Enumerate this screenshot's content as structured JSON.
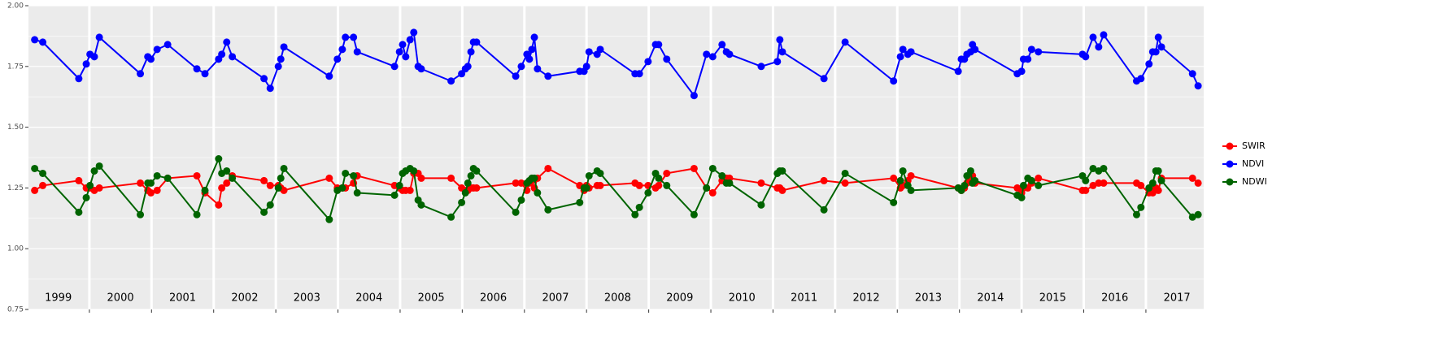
{
  "chart_data": {
    "type": "line",
    "x": [
      1999.12,
      1999.25,
      1999.83,
      1999.95,
      2000.01,
      2000.08,
      2000.16,
      2000.82,
      2000.94,
      2000.99,
      2001.09,
      2001.26,
      2001.73,
      2001.86,
      2002.08,
      2002.13,
      2002.21,
      2002.3,
      2002.81,
      2002.91,
      2003.04,
      2003.08,
      2003.13,
      2003.86,
      2003.99,
      2004.07,
      2004.12,
      2004.25,
      2004.31,
      2004.91,
      2004.99,
      2005.04,
      2005.09,
      2005.16,
      2005.22,
      2005.29,
      2005.34,
      2005.82,
      2005.99,
      2006.05,
      2006.09,
      2006.14,
      2006.18,
      2006.23,
      2006.86,
      2006.95,
      2007.04,
      2007.08,
      2007.12,
      2007.16,
      2007.21,
      2007.38,
      2007.89,
      2007.96,
      2008.0,
      2008.04,
      2008.17,
      2008.22,
      2008.78,
      2008.85,
      2008.99,
      2009.11,
      2009.16,
      2009.29,
      2009.73,
      2009.93,
      2010.03,
      2010.18,
      2010.25,
      2010.3,
      2010.81,
      2011.07,
      2011.11,
      2011.15,
      2011.82,
      2012.16,
      2012.94,
      2013.05,
      2013.09,
      2013.17,
      2013.22,
      2013.98,
      2014.03,
      2014.08,
      2014.12,
      2014.18,
      2014.21,
      2014.25,
      2014.93,
      2015.0,
      2015.03,
      2015.1,
      2015.16,
      2015.27,
      2015.98,
      2016.03,
      2016.15,
      2016.24,
      2016.32,
      2016.85,
      2016.92,
      2017.05,
      2017.11,
      2017.16,
      2017.2,
      2017.25,
      2017.75,
      2017.84
    ],
    "series": [
      {
        "name": "SWIR",
        "color": "#ff0000",
        "values": [
          1.24,
          1.26,
          1.28,
          1.25,
          1.25,
          1.24,
          1.25,
          1.27,
          1.24,
          1.23,
          1.24,
          1.29,
          1.3,
          1.23,
          1.18,
          1.25,
          1.27,
          1.3,
          1.28,
          1.26,
          1.26,
          1.25,
          1.24,
          1.29,
          1.25,
          1.25,
          1.25,
          1.27,
          1.3,
          1.26,
          1.25,
          1.24,
          1.24,
          1.24,
          1.31,
          1.31,
          1.29,
          1.29,
          1.25,
          1.24,
          1.24,
          1.25,
          1.25,
          1.25,
          1.27,
          1.27,
          1.24,
          1.27,
          1.28,
          1.25,
          1.29,
          1.33,
          1.26,
          1.24,
          1.26,
          1.25,
          1.26,
          1.26,
          1.27,
          1.26,
          1.26,
          1.25,
          1.26,
          1.31,
          1.33,
          1.25,
          1.23,
          1.28,
          1.29,
          1.29,
          1.27,
          1.25,
          1.25,
          1.24,
          1.28,
          1.27,
          1.29,
          1.25,
          1.26,
          1.28,
          1.3,
          1.25,
          1.24,
          1.25,
          1.27,
          1.29,
          1.3,
          1.27,
          1.25,
          1.23,
          1.25,
          1.25,
          1.27,
          1.29,
          1.24,
          1.24,
          1.26,
          1.27,
          1.27,
          1.27,
          1.26,
          1.23,
          1.23,
          1.25,
          1.24,
          1.29,
          1.29,
          1.27
        ]
      },
      {
        "name": "NDVI",
        "color": "#0000ff",
        "values": [
          1.86,
          1.85,
          1.7,
          1.76,
          1.8,
          1.79,
          1.87,
          1.72,
          1.79,
          1.78,
          1.82,
          1.84,
          1.74,
          1.72,
          1.78,
          1.8,
          1.85,
          1.79,
          1.7,
          1.66,
          1.75,
          1.78,
          1.83,
          1.71,
          1.78,
          1.82,
          1.87,
          1.87,
          1.81,
          1.75,
          1.81,
          1.84,
          1.79,
          1.86,
          1.89,
          1.75,
          1.74,
          1.69,
          1.72,
          1.74,
          1.75,
          1.81,
          1.85,
          1.85,
          1.71,
          1.75,
          1.8,
          1.78,
          1.82,
          1.87,
          1.74,
          1.71,
          1.73,
          1.73,
          1.75,
          1.81,
          1.8,
          1.82,
          1.72,
          1.72,
          1.77,
          1.84,
          1.84,
          1.78,
          1.63,
          1.8,
          1.79,
          1.84,
          1.81,
          1.8,
          1.75,
          1.77,
          1.86,
          1.81,
          1.7,
          1.85,
          1.69,
          1.79,
          1.82,
          1.8,
          1.81,
          1.73,
          1.78,
          1.78,
          1.8,
          1.81,
          1.84,
          1.82,
          1.72,
          1.73,
          1.78,
          1.78,
          1.82,
          1.81,
          1.8,
          1.79,
          1.87,
          1.83,
          1.88,
          1.69,
          1.7,
          1.76,
          1.81,
          1.81,
          1.87,
          1.83,
          1.72,
          1.67
        ]
      },
      {
        "name": "NDWI",
        "color": "#006400",
        "values": [
          1.33,
          1.31,
          1.15,
          1.21,
          1.26,
          1.32,
          1.34,
          1.14,
          1.27,
          1.27,
          1.3,
          1.29,
          1.14,
          1.24,
          1.37,
          1.31,
          1.32,
          1.29,
          1.15,
          1.18,
          1.25,
          1.29,
          1.33,
          1.12,
          1.24,
          1.25,
          1.31,
          1.3,
          1.23,
          1.22,
          1.26,
          1.31,
          1.32,
          1.33,
          1.32,
          1.2,
          1.18,
          1.13,
          1.19,
          1.23,
          1.27,
          1.3,
          1.33,
          1.32,
          1.15,
          1.2,
          1.27,
          1.28,
          1.29,
          1.29,
          1.23,
          1.16,
          1.19,
          1.25,
          1.25,
          1.3,
          1.32,
          1.31,
          1.14,
          1.17,
          1.23,
          1.31,
          1.29,
          1.26,
          1.14,
          1.25,
          1.33,
          1.3,
          1.27,
          1.27,
          1.18,
          1.31,
          1.32,
          1.32,
          1.16,
          1.31,
          1.19,
          1.28,
          1.32,
          1.26,
          1.24,
          1.25,
          1.24,
          1.26,
          1.3,
          1.32,
          1.27,
          1.28,
          1.22,
          1.21,
          1.26,
          1.29,
          1.28,
          1.26,
          1.3,
          1.28,
          1.33,
          1.32,
          1.33,
          1.14,
          1.17,
          1.25,
          1.27,
          1.32,
          1.32,
          1.28,
          1.13,
          1.14
        ]
      }
    ],
    "xlim": [
      1999.02,
      2017.93
    ],
    "xticks": [
      {
        "value": 1999.5,
        "label": "1999"
      },
      {
        "value": 2000.5,
        "label": "2000"
      },
      {
        "value": 2001.5,
        "label": "2001"
      },
      {
        "value": 2002.5,
        "label": "2002"
      },
      {
        "value": 2003.5,
        "label": "2003"
      },
      {
        "value": 2004.5,
        "label": "2004"
      },
      {
        "value": 2005.5,
        "label": "2005"
      },
      {
        "value": 2006.5,
        "label": "2006"
      },
      {
        "value": 2007.5,
        "label": "2007"
      },
      {
        "value": 2008.5,
        "label": "2008"
      },
      {
        "value": 2009.5,
        "label": "2009"
      },
      {
        "value": 2010.5,
        "label": "2010"
      },
      {
        "value": 2011.5,
        "label": "2011"
      },
      {
        "value": 2012.5,
        "label": "2012"
      },
      {
        "value": 2013.5,
        "label": "2013"
      },
      {
        "value": 2014.5,
        "label": "2014"
      },
      {
        "value": 2015.5,
        "label": "2015"
      },
      {
        "value": 2016.5,
        "label": "2016"
      },
      {
        "value": 2017.5,
        "label": "2017"
      }
    ],
    "separators": [
      2000,
      2001,
      2002,
      2003,
      2004,
      2005,
      2006,
      2007,
      2008,
      2009,
      2010,
      2011,
      2012,
      2013,
      2014,
      2015,
      2016,
      2017
    ],
    "ylim": [
      0.75,
      2.0
    ],
    "yticks": [
      {
        "value": 0.75,
        "label": "0.75"
      },
      {
        "value": 1.0,
        "label": "1.00"
      },
      {
        "value": 1.25,
        "label": "1.25"
      },
      {
        "value": 1.5,
        "label": "1.50"
      },
      {
        "value": 1.75,
        "label": "1.75"
      },
      {
        "value": 2.0,
        "label": "2.00"
      }
    ],
    "grid": true,
    "legend": "right"
  }
}
